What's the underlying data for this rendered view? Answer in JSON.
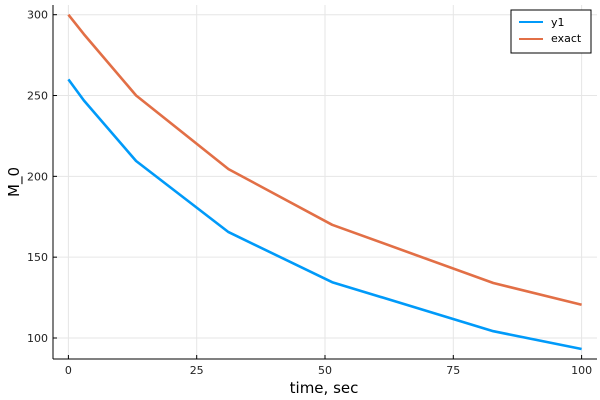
{
  "chart_data": {
    "type": "line",
    "xlabel": "time, sec",
    "ylabel": "M_0",
    "xlim": [
      -3,
      103
    ],
    "ylim": [
      87,
      306
    ],
    "xticks": [
      0,
      25,
      50,
      75,
      100
    ],
    "yticks": [
      100,
      150,
      200,
      250,
      300
    ],
    "grid": true,
    "legend_position": "top-right",
    "series": [
      {
        "name": "y1",
        "color": "#009af9",
        "x": [
          0,
          3,
          13.2,
          31.2,
          51.4,
          82.8,
          100
        ],
        "y": [
          260,
          247,
          209.5,
          165.5,
          134.5,
          104.2,
          93.2
        ]
      },
      {
        "name": "exact",
        "color": "#e26f46",
        "x": [
          0,
          3,
          13.2,
          31.2,
          51.4,
          82.8,
          100
        ],
        "y": [
          300,
          288,
          250,
          204.5,
          170,
          134,
          120.5
        ]
      }
    ]
  }
}
